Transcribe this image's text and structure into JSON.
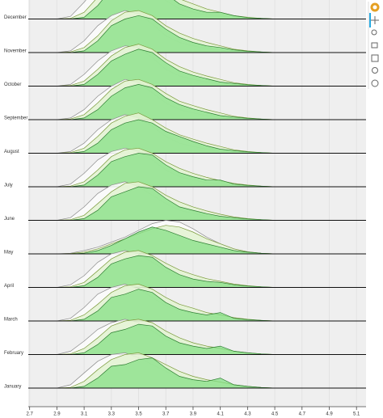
{
  "chart_data": {
    "type": "ridgeline",
    "categories": [
      "January",
      "February",
      "March",
      "April",
      "May",
      "June",
      "July",
      "August",
      "September",
      "October",
      "November",
      "December"
    ],
    "x": [
      2.9,
      3.0,
      3.1,
      3.2,
      3.3,
      3.4,
      3.5,
      3.6,
      3.7,
      3.8,
      3.9,
      4.0,
      4.1,
      4.2,
      4.3,
      4.4,
      4.5
    ],
    "xlim": [
      2.69,
      5.17
    ],
    "xticks": [
      2.7,
      2.9,
      3.1,
      3.3,
      3.5,
      3.7,
      3.9,
      4.1,
      4.3,
      4.5,
      4.7,
      4.9,
      5.1
    ],
    "grid": true,
    "series": [
      {
        "color": "#8c8c8c",
        "fill": "#fbfbfb",
        "values": [
          [
            0,
            0.1,
            0.45,
            0.8,
            1.0,
            1.05,
            0.9,
            0.7,
            0.5,
            0.3,
            0.2,
            0.12,
            0.08,
            0.05,
            0.03,
            0.01,
            0
          ],
          [
            0,
            0.1,
            0.4,
            0.75,
            0.95,
            1.05,
            0.95,
            0.7,
            0.45,
            0.3,
            0.2,
            0.12,
            0.08,
            0.05,
            0.03,
            0.01,
            0
          ],
          [
            0,
            0.08,
            0.4,
            0.8,
            1.0,
            1.1,
            0.95,
            0.7,
            0.45,
            0.3,
            0.2,
            0.15,
            0.1,
            0.05,
            0.03,
            0.01,
            0
          ],
          [
            0,
            0.08,
            0.35,
            0.75,
            1.0,
            1.1,
            1.0,
            0.75,
            0.5,
            0.3,
            0.2,
            0.12,
            0.08,
            0.05,
            0.03,
            0.01,
            0
          ],
          [
            0,
            0.02,
            0.1,
            0.2,
            0.35,
            0.5,
            0.7,
            0.9,
            1.0,
            0.95,
            0.75,
            0.5,
            0.3,
            0.15,
            0.06,
            0.02,
            0
          ],
          [
            0,
            0.08,
            0.4,
            0.8,
            1.05,
            1.15,
            1.0,
            0.75,
            0.5,
            0.3,
            0.2,
            0.12,
            0.08,
            0.05,
            0.03,
            0.01,
            0
          ],
          [
            0,
            0.08,
            0.4,
            0.8,
            1.05,
            1.15,
            1.05,
            0.8,
            0.5,
            0.3,
            0.2,
            0.12,
            0.08,
            0.05,
            0.03,
            0.01,
            0
          ],
          [
            0,
            0.05,
            0.3,
            0.7,
            1.0,
            1.15,
            1.05,
            0.8,
            0.5,
            0.3,
            0.2,
            0.12,
            0.08,
            0.05,
            0.03,
            0.01,
            0
          ],
          [
            0,
            0.05,
            0.3,
            0.7,
            1.0,
            1.2,
            1.1,
            0.8,
            0.5,
            0.3,
            0.2,
            0.12,
            0.08,
            0.05,
            0.03,
            0.01,
            0
          ],
          [
            0,
            0.05,
            0.35,
            0.75,
            1.05,
            1.2,
            1.15,
            0.85,
            0.5,
            0.3,
            0.2,
            0.12,
            0.08,
            0.05,
            0.03,
            0.01,
            0
          ],
          [
            0,
            0.05,
            0.35,
            0.8,
            1.1,
            1.25,
            1.15,
            0.85,
            0.5,
            0.3,
            0.2,
            0.12,
            0.08,
            0.05,
            0.03,
            0.01,
            0
          ],
          [
            0,
            0.08,
            0.5,
            1.0,
            1.3,
            1.5,
            1.35,
            0.95,
            0.55,
            0.3,
            0.2,
            0.12,
            0.08,
            0.05,
            0.03,
            0.01,
            0
          ]
        ]
      },
      {
        "color": "#7a9a3a",
        "fill": "#e3f3d3",
        "values": [
          [
            0,
            0.02,
            0.2,
            0.55,
            0.85,
            1.0,
            1.05,
            0.9,
            0.7,
            0.5,
            0.35,
            0.25,
            0.18,
            0.1,
            0.05,
            0.02,
            0
          ],
          [
            0,
            0.02,
            0.18,
            0.5,
            0.85,
            1.0,
            1.05,
            0.95,
            0.7,
            0.5,
            0.35,
            0.25,
            0.18,
            0.1,
            0.05,
            0.02,
            0
          ],
          [
            0,
            0.02,
            0.18,
            0.5,
            0.85,
            1.05,
            1.1,
            0.95,
            0.7,
            0.5,
            0.38,
            0.25,
            0.18,
            0.1,
            0.05,
            0.02,
            0
          ],
          [
            0,
            0.02,
            0.15,
            0.5,
            0.85,
            1.05,
            1.1,
            0.95,
            0.72,
            0.52,
            0.38,
            0.26,
            0.18,
            0.1,
            0.05,
            0.02,
            0
          ],
          [
            0,
            0.01,
            0.05,
            0.15,
            0.3,
            0.45,
            0.6,
            0.75,
            0.85,
            0.8,
            0.65,
            0.45,
            0.3,
            0.15,
            0.06,
            0.02,
            0
          ],
          [
            0,
            0.02,
            0.15,
            0.5,
            0.85,
            1.1,
            1.15,
            1.0,
            0.75,
            0.55,
            0.4,
            0.28,
            0.18,
            0.1,
            0.05,
            0.02,
            0
          ],
          [
            0,
            0.02,
            0.15,
            0.5,
            0.9,
            1.1,
            1.15,
            1.0,
            0.75,
            0.55,
            0.4,
            0.28,
            0.18,
            0.1,
            0.05,
            0.02,
            0
          ],
          [
            0,
            0.02,
            0.15,
            0.5,
            0.9,
            1.1,
            1.2,
            1.0,
            0.75,
            0.55,
            0.42,
            0.3,
            0.2,
            0.1,
            0.05,
            0.02,
            0
          ],
          [
            0,
            0.02,
            0.15,
            0.5,
            0.9,
            1.15,
            1.2,
            1.05,
            0.78,
            0.55,
            0.42,
            0.3,
            0.2,
            0.1,
            0.05,
            0.02,
            0
          ],
          [
            0,
            0.02,
            0.15,
            0.5,
            0.9,
            1.15,
            1.25,
            1.1,
            0.8,
            0.58,
            0.42,
            0.3,
            0.2,
            0.1,
            0.05,
            0.02,
            0
          ],
          [
            0,
            0.02,
            0.15,
            0.5,
            0.95,
            1.2,
            1.25,
            1.1,
            0.8,
            0.58,
            0.42,
            0.3,
            0.2,
            0.1,
            0.05,
            0.02,
            0
          ],
          [
            0,
            0.02,
            0.2,
            0.65,
            1.1,
            1.4,
            1.5,
            1.3,
            0.9,
            0.6,
            0.45,
            0.3,
            0.2,
            0.1,
            0.05,
            0.02,
            0
          ]
        ]
      },
      {
        "color": "#2e7d32",
        "fill": "#86e086",
        "values": [
          [
            0,
            0,
            0.05,
            0.3,
            0.65,
            0.7,
            0.85,
            0.9,
            0.6,
            0.35,
            0.25,
            0.2,
            0.3,
            0.1,
            0.05,
            0.02,
            0
          ],
          [
            0,
            0,
            0.05,
            0.3,
            0.65,
            0.75,
            0.9,
            0.85,
            0.55,
            0.35,
            0.25,
            0.18,
            0.25,
            0.1,
            0.05,
            0.02,
            0
          ],
          [
            0,
            0,
            0.05,
            0.3,
            0.7,
            0.8,
            0.95,
            0.85,
            0.55,
            0.35,
            0.25,
            0.18,
            0.25,
            0.08,
            0.04,
            0.02,
            0
          ],
          [
            0,
            0,
            0.05,
            0.3,
            0.7,
            0.85,
            0.95,
            0.9,
            0.6,
            0.38,
            0.25,
            0.18,
            0.15,
            0.08,
            0.04,
            0.02,
            0
          ],
          [
            0,
            0,
            0.02,
            0.1,
            0.25,
            0.45,
            0.65,
            0.8,
            0.7,
            0.55,
            0.4,
            0.3,
            0.2,
            0.1,
            0.05,
            0.02,
            0
          ],
          [
            0,
            0,
            0.05,
            0.3,
            0.7,
            0.85,
            1.0,
            0.95,
            0.65,
            0.4,
            0.3,
            0.2,
            0.12,
            0.08,
            0.04,
            0.02,
            0
          ],
          [
            0,
            0,
            0.05,
            0.35,
            0.75,
            0.9,
            1.0,
            0.95,
            0.65,
            0.42,
            0.3,
            0.2,
            0.2,
            0.08,
            0.04,
            0.02,
            0
          ],
          [
            0,
            0,
            0.05,
            0.3,
            0.7,
            0.9,
            1.0,
            0.9,
            0.65,
            0.5,
            0.35,
            0.22,
            0.12,
            0.08,
            0.04,
            0.02,
            0
          ],
          [
            0,
            0,
            0.05,
            0.3,
            0.7,
            0.95,
            1.05,
            0.95,
            0.65,
            0.45,
            0.32,
            0.22,
            0.12,
            0.08,
            0.04,
            0.02,
            0
          ],
          [
            0,
            0,
            0.05,
            0.35,
            0.75,
            0.95,
            1.1,
            1.0,
            0.7,
            0.45,
            0.32,
            0.22,
            0.12,
            0.08,
            0.04,
            0.02,
            0
          ],
          [
            0,
            0,
            0.05,
            0.35,
            0.8,
            1.0,
            1.1,
            1.0,
            0.7,
            0.45,
            0.3,
            0.2,
            0.15,
            0.08,
            0.04,
            0.02,
            0
          ],
          [
            0,
            0,
            0.05,
            0.4,
            0.9,
            1.2,
            1.3,
            1.1,
            0.75,
            0.45,
            0.3,
            0.2,
            0.2,
            0.1,
            0.04,
            0.02,
            0
          ]
        ]
      }
    ]
  }
}
